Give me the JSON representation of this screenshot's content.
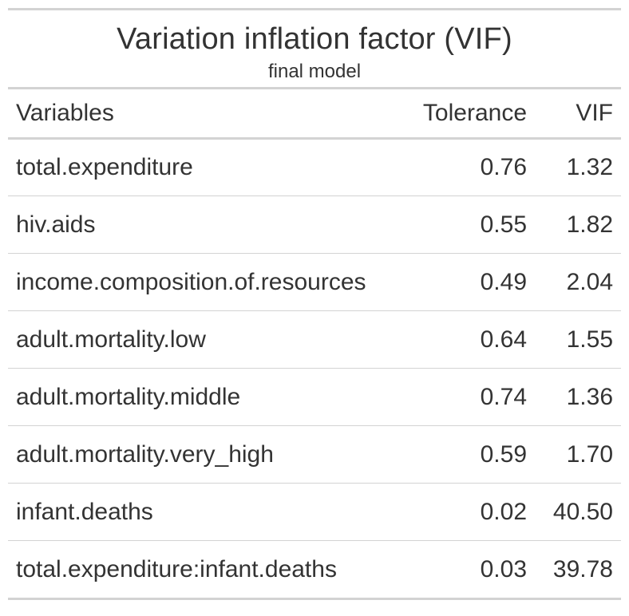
{
  "chart_data": {
    "type": "table",
    "title": "Variation inflation factor (VIF)",
    "subtitle": "final model",
    "columns": [
      "Variables",
      "Tolerance",
      "VIF"
    ],
    "rows": [
      [
        "total.expenditure",
        "0.76",
        "1.32"
      ],
      [
        "hiv.aids",
        "0.55",
        "1.82"
      ],
      [
        "income.composition.of.resources",
        "0.49",
        "2.04"
      ],
      [
        "adult.mortality.low",
        "0.64",
        "1.55"
      ],
      [
        "adult.mortality.middle",
        "0.74",
        "1.36"
      ],
      [
        "adult.mortality.very_high",
        "0.59",
        "1.70"
      ],
      [
        "infant.deaths",
        "0.02",
        "40.50"
      ],
      [
        "total.expenditure:infant.deaths",
        "0.03",
        "39.78"
      ]
    ]
  }
}
